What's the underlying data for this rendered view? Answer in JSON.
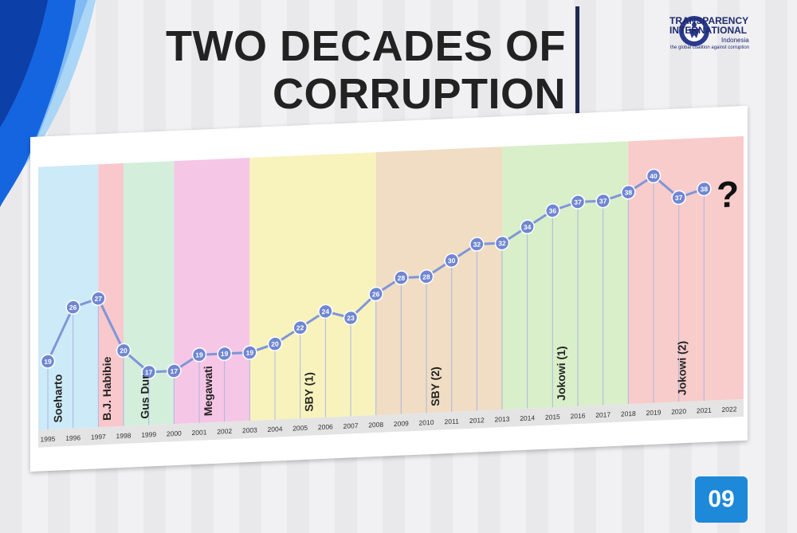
{
  "slide": {
    "title_line1": "TWO DECADES OF",
    "title_line2": "CORRUPTION",
    "page_number": "09"
  },
  "logo": {
    "line1": "TRANSPARENCY",
    "line2": "INTERNATIONAL",
    "country": "Indonesia",
    "tagline": "the global coalition against corruption"
  },
  "colors": {
    "line": "#7f95d8",
    "marker": "#6f86d1",
    "title": "#222222",
    "accent": "#1e88d9"
  },
  "chart_data": {
    "type": "line",
    "title": "",
    "xlabel": "",
    "ylabel": "",
    "categories": [
      "1995",
      "1996",
      "1997",
      "1998",
      "1999",
      "2000",
      "2001",
      "2002",
      "2003",
      "2004",
      "2005",
      "2006",
      "2007",
      "2008",
      "2009",
      "2010",
      "2011",
      "2012",
      "2013",
      "2014",
      "2015",
      "2016",
      "2017",
      "2018",
      "2019",
      "2020",
      "2021",
      "2022"
    ],
    "series": [
      {
        "values": [
          19,
          26,
          27,
          20,
          17,
          17,
          19,
          19,
          19,
          20,
          22,
          24,
          23,
          26,
          28,
          28,
          30,
          32,
          32,
          34,
          36,
          37,
          37,
          38,
          40,
          37,
          38,
          null
        ]
      }
    ],
    "ylim": [
      10,
      42
    ],
    "grid": false,
    "annotation": "?",
    "periods": [
      {
        "label": "Soeharto",
        "start": "1995",
        "end": "1997",
        "color": "#cdeaf8"
      },
      {
        "label": "B.J. Habibie",
        "start": "1997",
        "end": "1998",
        "color": "#f8c8cc"
      },
      {
        "label": "Gus Dur",
        "start": "1998",
        "end": "2000",
        "color": "#d3efdc"
      },
      {
        "label": "Megawati",
        "start": "2000",
        "end": "2003",
        "color": "#f6c6e6"
      },
      {
        "label": "SBY (1)",
        "start": "2003",
        "end": "2008",
        "color": "#f8f3bd"
      },
      {
        "label": "SBY (2)",
        "start": "2008",
        "end": "2013",
        "color": "#f0ddc3"
      },
      {
        "label": "Jokowi (1)",
        "start": "2013",
        "end": "2018",
        "color": "#d8efc9"
      },
      {
        "label": "Jokowi (2)",
        "start": "2018",
        "end": "2022",
        "color": "#f8cccb"
      }
    ]
  }
}
